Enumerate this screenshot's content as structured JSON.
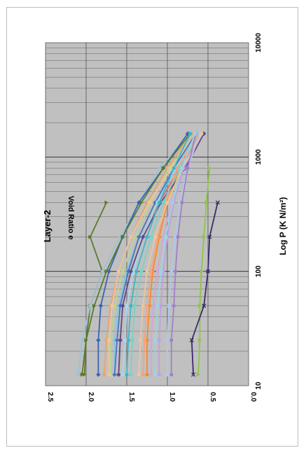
{
  "chart_data": {
    "type": "line",
    "orientation": "rotated 90 degrees clockwise",
    "title": "Layer-2",
    "xlabel": "Log P (K N/m²)",
    "ylabel": "Void Ratio e",
    "x_scale": "log",
    "xlim": [
      10,
      10000
    ],
    "ylim": [
      0.0,
      2.5
    ],
    "x_tick_labels": [
      "10",
      "100",
      "1000",
      "10000"
    ],
    "y_tick_labels": [
      "2.5",
      "2.0",
      "1.5",
      "1.0",
      "0.5",
      "0.0"
    ],
    "grid": true,
    "legend": "none",
    "x": [
      12.5,
      25,
      50,
      100,
      200,
      400,
      800,
      1600
    ],
    "series": [
      {
        "color": "#5b7a2e",
        "marker": "triangle",
        "values": [
          2.02,
          2.0,
          1.95,
          1.8,
          1.95,
          1.75,
          null,
          null
        ]
      },
      {
        "color": "#9ec2d6",
        "marker": "circle",
        "values": [
          2.1,
          2.05,
          1.95,
          1.8,
          1.58,
          1.35,
          1.1,
          0.72
        ]
      },
      {
        "color": "#3a64b0",
        "marker": "diamond",
        "values": [
          1.85,
          1.85,
          1.82,
          1.72,
          1.55,
          1.35,
          1.05,
          0.75
        ]
      },
      {
        "color": "#5b7a2e",
        "marker": "triangle",
        "values": [
          2.05,
          2.0,
          1.9,
          1.75,
          1.55,
          1.32,
          1.05,
          0.72
        ]
      },
      {
        "color": "#e8a46a",
        "marker": "circle",
        "values": [
          1.78,
          1.75,
          1.7,
          1.6,
          1.45,
          1.25,
          1.0,
          0.7
        ]
      },
      {
        "color": "#bcd58c",
        "marker": "square",
        "values": [
          1.7,
          1.7,
          1.65,
          1.55,
          1.4,
          1.2,
          0.98,
          0.65
        ]
      },
      {
        "color": "#f2c2a0",
        "marker": "square",
        "values": [
          1.72,
          1.72,
          1.68,
          1.6,
          1.45,
          1.22,
          0.95,
          0.65
        ]
      },
      {
        "color": "#80c8e0",
        "marker": "circle",
        "values": [
          1.65,
          1.65,
          1.6,
          1.5,
          1.35,
          1.15,
          0.9,
          0.62
        ]
      },
      {
        "color": "#e36b6b",
        "marker": "circle",
        "values": [
          1.6,
          1.58,
          1.55,
          1.45,
          1.3,
          1.1,
          0.85,
          0.58
        ]
      },
      {
        "color": "#4a74c4",
        "marker": "diamond",
        "values": [
          1.65,
          1.62,
          1.58,
          1.48,
          1.35,
          1.15,
          0.92,
          0.65
        ]
      },
      {
        "color": "#a9d7e8",
        "marker": "square",
        "values": [
          1.55,
          1.52,
          1.5,
          1.42,
          1.3,
          1.12,
          0.9,
          0.6
        ]
      },
      {
        "color": "#f28e2b",
        "marker": "circle",
        "values": [
          1.25,
          1.25,
          1.22,
          1.18,
          1.1,
          1.0,
          0.85,
          0.6
        ]
      },
      {
        "color": "#ff9e7a",
        "marker": "circle",
        "values": [
          1.3,
          1.28,
          1.25,
          1.2,
          1.12,
          1.02,
          0.88,
          0.62
        ]
      },
      {
        "color": "#5f4a8b",
        "marker": "diamond",
        "values": [
          1.6,
          1.58,
          1.55,
          1.45,
          1.3,
          1.08,
          0.78,
          0.55
        ]
      },
      {
        "color": "#d6a4d6",
        "marker": "circle",
        "values": [
          1.2,
          1.2,
          1.17,
          1.12,
          1.05,
          0.95,
          0.8,
          0.58
        ]
      },
      {
        "color": "#7fd0c0",
        "marker": "square",
        "values": [
          1.45,
          1.43,
          1.4,
          1.32,
          1.2,
          1.05,
          0.85,
          0.6
        ]
      },
      {
        "color": "#c0a0e0",
        "marker": "circle",
        "values": [
          1.1,
          1.1,
          1.08,
          1.05,
          1.0,
          0.92,
          0.8,
          0.6
        ]
      },
      {
        "color": "#b0c8e8",
        "marker": "square",
        "values": [
          1.0,
          1.0,
          0.98,
          0.95,
          0.9,
          0.85,
          0.75,
          0.6
        ]
      },
      {
        "color": "#e8c8a0",
        "marker": "circle",
        "values": [
          1.35,
          1.33,
          1.3,
          1.25,
          1.15,
          1.0,
          0.82,
          0.58
        ]
      },
      {
        "color": "#a080c8",
        "marker": "circle",
        "values": [
          0.95,
          0.95,
          0.92,
          0.9,
          0.87,
          0.82,
          0.75,
          0.65
        ]
      },
      {
        "color": "#9bd4e4",
        "marker": "square",
        "values": [
          1.15,
          1.15,
          1.12,
          1.08,
          1.02,
          0.94,
          0.82,
          0.66
        ]
      },
      {
        "color": "#3bb8c8",
        "marker": "circle",
        "values": [
          1.5,
          1.48,
          1.45,
          1.38,
          1.25,
          1.1,
          0.92,
          0.72
        ]
      },
      {
        "color": "#8fc44a",
        "marker": "triangle",
        "values": [
          0.62,
          0.6,
          0.6,
          0.58,
          0.55,
          0.52,
          0.48,
          null
        ]
      },
      {
        "color": "#3b2a6b",
        "marker": "x",
        "values": [
          0.68,
          0.7,
          0.55,
          0.5,
          0.48,
          0.38,
          null,
          null
        ]
      }
    ]
  }
}
